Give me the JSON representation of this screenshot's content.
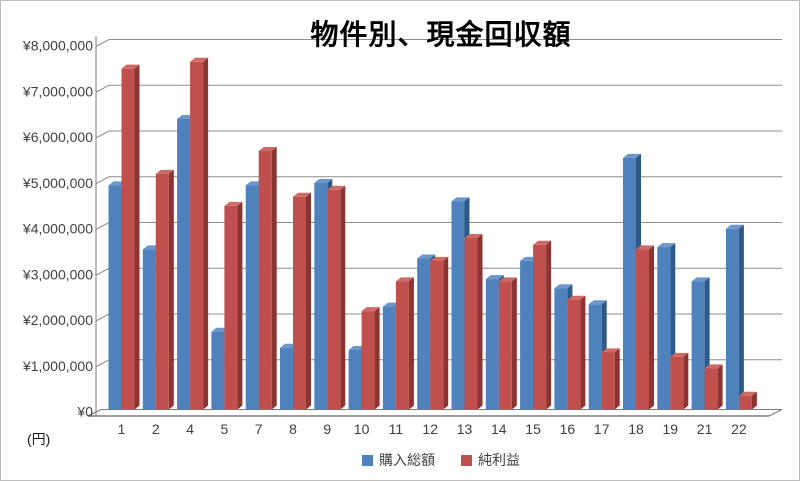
{
  "page": {
    "background": "#ffffff",
    "border_color": "#bdbdbd",
    "gridline_color": "#8e8e8e",
    "axis_color": "#7a7a7a"
  },
  "chart_data": {
    "type": "bar",
    "style": "pseudo-3d-clustered",
    "title": "物件別、現金回収額",
    "unit_label": "(円)",
    "xlabel": "",
    "ylabel": "",
    "categories": [
      "1",
      "2",
      "4",
      "5",
      "7",
      "8",
      "9",
      "10",
      "11",
      "12",
      "13",
      "14",
      "15",
      "16",
      "17",
      "18",
      "19",
      "21",
      "22"
    ],
    "series": [
      {
        "name": "購入総額",
        "color": "#4f81bd",
        "side_color": "#2e5a88",
        "top_color": "#6d96c9",
        "values": [
          4900000,
          3500000,
          6350000,
          1700000,
          4900000,
          1350000,
          4950000,
          1300000,
          2250000,
          3300000,
          4550000,
          2850000,
          3250000,
          2650000,
          2300000,
          5500000,
          3550000,
          2800000,
          3950000
        ]
      },
      {
        "name": "純利益",
        "color": "#c0504d",
        "side_color": "#8b3432",
        "top_color": "#cd6a66",
        "values": [
          7450000,
          5150000,
          7600000,
          4450000,
          5650000,
          4650000,
          4800000,
          2150000,
          2800000,
          3250000,
          3750000,
          2800000,
          3600000,
          2400000,
          1250000,
          3500000,
          1150000,
          900000,
          300000
        ]
      }
    ],
    "y_axis": {
      "min": 0,
      "max": 8000000,
      "step": 1000000,
      "prefix": "¥",
      "tick_labels": [
        "¥0",
        "¥1,000,000",
        "¥2,000,000",
        "¥3,000,000",
        "¥4,000,000",
        "¥5,000,000",
        "¥6,000,000",
        "¥7,000,000",
        "¥8,000,000"
      ]
    },
    "legend_position": "bottom",
    "grid": true
  }
}
